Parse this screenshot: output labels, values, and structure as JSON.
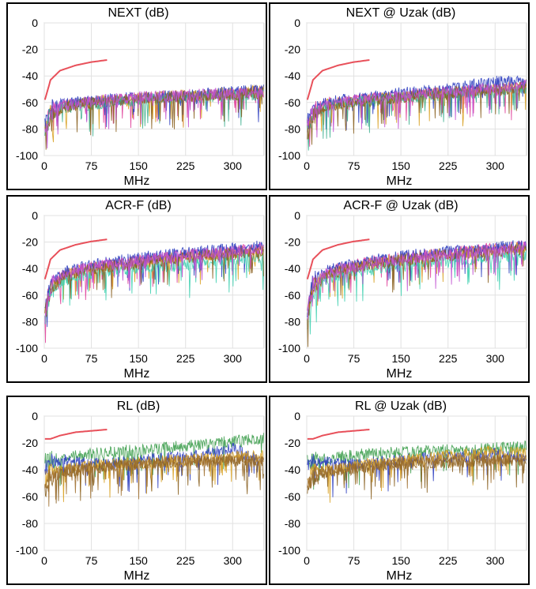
{
  "chart_data": [
    {
      "type": "line",
      "title": "NEXT (dB)",
      "xlabel": "MHz",
      "ylabel": "",
      "xlim": [
        0,
        350
      ],
      "ylim": [
        -100,
        0
      ],
      "x_ticks": [
        0,
        75,
        150,
        225,
        300
      ],
      "y_ticks": [
        0,
        -20,
        -40,
        -60,
        -80,
        -100
      ],
      "grid": true,
      "limit_line": {
        "x": [
          1,
          10,
          25,
          50,
          75,
          100
        ],
        "y": [
          -58,
          -43,
          -36,
          -32,
          -29.5,
          -28
        ]
      },
      "series": [
        {
          "color": "#e0409a",
          "x": [
            1,
            10,
            30,
            60,
            100,
            150,
            200,
            250,
            300,
            350
          ],
          "y": [
            -78,
            -66,
            -62,
            -60,
            -59,
            -57,
            -56,
            -55,
            -54,
            -52
          ]
        },
        {
          "color": "#d8a020",
          "x": [
            1,
            10,
            30,
            60,
            100,
            150,
            200,
            250,
            300,
            350
          ],
          "y": [
            -80,
            -68,
            -63,
            -61,
            -58,
            -57,
            -55,
            -54,
            -53,
            -51
          ]
        },
        {
          "color": "#3040c0",
          "x": [
            1,
            10,
            30,
            60,
            100,
            150,
            200,
            250,
            300,
            350
          ],
          "y": [
            -76,
            -65,
            -61,
            -59,
            -58,
            -56,
            -55,
            -54,
            -52,
            -50
          ]
        },
        {
          "color": "#40b090",
          "x": [
            1,
            10,
            30,
            60,
            100,
            150,
            200,
            250,
            300,
            350
          ],
          "y": [
            -82,
            -69,
            -64,
            -62,
            -60,
            -58,
            -57,
            -56,
            -55,
            -54
          ]
        },
        {
          "color": "#8a6020",
          "x": [
            1,
            10,
            30,
            60,
            100,
            150,
            200,
            250,
            300,
            350
          ],
          "y": [
            -84,
            -70,
            -64,
            -61,
            -59,
            -57,
            -56,
            -55,
            -54,
            -53
          ]
        },
        {
          "color": "#c050d0",
          "x": [
            1,
            10,
            30,
            60,
            100,
            150,
            200,
            250,
            300,
            350
          ],
          "y": [
            -79,
            -67,
            -62,
            -60,
            -58,
            -56,
            -55,
            -54,
            -53,
            -52
          ]
        }
      ]
    },
    {
      "type": "line",
      "title": "NEXT @ Uzak (dB)",
      "xlabel": "MHz",
      "ylabel": "",
      "xlim": [
        0,
        350
      ],
      "ylim": [
        -100,
        0
      ],
      "x_ticks": [
        0,
        75,
        150,
        225,
        300
      ],
      "y_ticks": [
        0,
        -20,
        -40,
        -60,
        -80,
        -100
      ],
      "grid": true,
      "limit_line": {
        "x": [
          1,
          10,
          25,
          50,
          75,
          100
        ],
        "y": [
          -58,
          -43,
          -36,
          -32,
          -29.5,
          -28
        ]
      },
      "series": [
        {
          "color": "#e0409a",
          "x": [
            1,
            10,
            30,
            60,
            100,
            150,
            200,
            250,
            300,
            350
          ],
          "y": [
            -78,
            -66,
            -61,
            -59,
            -57,
            -55,
            -53,
            -51,
            -50,
            -48
          ]
        },
        {
          "color": "#d8a020",
          "x": [
            1,
            10,
            30,
            60,
            100,
            150,
            200,
            250,
            300,
            350
          ],
          "y": [
            -80,
            -68,
            -62,
            -60,
            -58,
            -55,
            -53,
            -52,
            -50,
            -47
          ]
        },
        {
          "color": "#3040c0",
          "x": [
            1,
            10,
            30,
            60,
            100,
            150,
            200,
            250,
            300,
            350
          ],
          "y": [
            -76,
            -65,
            -60,
            -58,
            -56,
            -53,
            -51,
            -48,
            -44,
            -45
          ]
        },
        {
          "color": "#40b090",
          "x": [
            1,
            10,
            30,
            60,
            100,
            150,
            200,
            250,
            300,
            350
          ],
          "y": [
            -82,
            -69,
            -63,
            -61,
            -59,
            -57,
            -55,
            -53,
            -52,
            -50
          ]
        },
        {
          "color": "#8a6020",
          "x": [
            1,
            10,
            30,
            60,
            100,
            150,
            200,
            250,
            300,
            350
          ],
          "y": [
            -84,
            -70,
            -64,
            -61,
            -59,
            -56,
            -54,
            -52,
            -51,
            -49
          ]
        },
        {
          "color": "#c050d0",
          "x": [
            1,
            10,
            30,
            60,
            100,
            150,
            200,
            250,
            300,
            350
          ],
          "y": [
            -79,
            -67,
            -62,
            -59,
            -57,
            -55,
            -53,
            -51,
            -49,
            -47
          ]
        }
      ]
    },
    {
      "type": "line",
      "title": "ACR-F (dB)",
      "xlabel": "MHz",
      "ylabel": "",
      "xlim": [
        0,
        350
      ],
      "ylim": [
        -100,
        0
      ],
      "x_ticks": [
        0,
        75,
        150,
        225,
        300
      ],
      "y_ticks": [
        0,
        -20,
        -40,
        -60,
        -80,
        -100
      ],
      "grid": true,
      "limit_line": {
        "x": [
          1,
          10,
          25,
          50,
          75,
          100
        ],
        "y": [
          -48,
          -33,
          -26,
          -22,
          -19.5,
          -18
        ]
      },
      "series": [
        {
          "color": "#e0409a",
          "x": [
            1,
            10,
            30,
            60,
            100,
            150,
            200,
            250,
            300,
            350
          ],
          "y": [
            -72,
            -52,
            -44,
            -40,
            -37,
            -34,
            -31,
            -29,
            -27,
            -25
          ]
        },
        {
          "color": "#d8a020",
          "x": [
            1,
            10,
            30,
            60,
            100,
            150,
            200,
            250,
            300,
            350
          ],
          "y": [
            -74,
            -54,
            -46,
            -41,
            -38,
            -35,
            -32,
            -30,
            -28,
            -26
          ]
        },
        {
          "color": "#3040c0",
          "x": [
            1,
            10,
            30,
            60,
            100,
            150,
            200,
            250,
            300,
            350
          ],
          "y": [
            -70,
            -51,
            -43,
            -39,
            -35,
            -32,
            -29,
            -27,
            -25,
            -23
          ]
        },
        {
          "color": "#40d0b0",
          "x": [
            1,
            10,
            30,
            60,
            100,
            150,
            200,
            250,
            300,
            350
          ],
          "y": [
            -80,
            -58,
            -49,
            -45,
            -42,
            -40,
            -38,
            -36,
            -34,
            -32
          ]
        },
        {
          "color": "#8a6020",
          "x": [
            1,
            10,
            30,
            60,
            100,
            150,
            200,
            250,
            300,
            350
          ],
          "y": [
            -76,
            -55,
            -47,
            -42,
            -39,
            -36,
            -33,
            -31,
            -29,
            -27
          ]
        },
        {
          "color": "#c050d0",
          "x": [
            1,
            10,
            30,
            60,
            100,
            150,
            200,
            250,
            300,
            350
          ],
          "y": [
            -73,
            -53,
            -45,
            -40,
            -37,
            -34,
            -31,
            -29,
            -27,
            -25
          ]
        }
      ]
    },
    {
      "type": "line",
      "title": "ACR-F @ Uzak (dB)",
      "xlabel": "MHz",
      "ylabel": "",
      "xlim": [
        0,
        350
      ],
      "ylim": [
        -100,
        0
      ],
      "x_ticks": [
        0,
        75,
        150,
        225,
        300
      ],
      "y_ticks": [
        0,
        -20,
        -40,
        -60,
        -80,
        -100
      ],
      "grid": true,
      "limit_line": {
        "x": [
          1,
          10,
          25,
          50,
          75,
          100
        ],
        "y": [
          -48,
          -33,
          -26,
          -22,
          -19.5,
          -18
        ]
      },
      "series": [
        {
          "color": "#e0409a",
          "x": [
            1,
            10,
            30,
            60,
            100,
            150,
            200,
            250,
            300,
            350
          ],
          "y": [
            -72,
            -52,
            -43,
            -39,
            -35,
            -32,
            -29,
            -27,
            -25,
            -23
          ]
        },
        {
          "color": "#d8a020",
          "x": [
            1,
            10,
            30,
            60,
            100,
            150,
            200,
            250,
            300,
            350
          ],
          "y": [
            -74,
            -53,
            -45,
            -40,
            -36,
            -33,
            -30,
            -28,
            -26,
            -24
          ]
        },
        {
          "color": "#3040c0",
          "x": [
            1,
            10,
            30,
            60,
            100,
            150,
            200,
            250,
            300,
            350
          ],
          "y": [
            -70,
            -50,
            -42,
            -38,
            -34,
            -31,
            -28,
            -26,
            -24,
            -22
          ]
        },
        {
          "color": "#40d0b0",
          "x": [
            1,
            10,
            30,
            60,
            100,
            150,
            200,
            250,
            300,
            350
          ],
          "y": [
            -80,
            -57,
            -48,
            -44,
            -41,
            -38,
            -36,
            -34,
            -32,
            -30
          ]
        },
        {
          "color": "#8a6020",
          "x": [
            1,
            10,
            30,
            60,
            100,
            150,
            200,
            250,
            300,
            350
          ],
          "y": [
            -76,
            -55,
            -46,
            -41,
            -37,
            -34,
            -31,
            -29,
            -27,
            -25
          ]
        },
        {
          "color": "#c050d0",
          "x": [
            1,
            10,
            30,
            60,
            100,
            150,
            200,
            250,
            300,
            350
          ],
          "y": [
            -73,
            -52,
            -44,
            -40,
            -36,
            -33,
            -30,
            -28,
            -26,
            -24
          ]
        }
      ]
    },
    {
      "type": "line",
      "title": "RL (dB)",
      "xlabel": "MHz",
      "ylabel": "",
      "xlim": [
        0,
        350
      ],
      "ylim": [
        -100,
        0
      ],
      "x_ticks": [
        0,
        75,
        150,
        225,
        300
      ],
      "y_ticks": [
        0,
        -20,
        -40,
        -60,
        -80,
        -100
      ],
      "grid": true,
      "limit_line": {
        "x": [
          1,
          10,
          25,
          50,
          75,
          100
        ],
        "y": [
          -17,
          -17,
          -14.5,
          -12,
          -11,
          -10
        ]
      },
      "series": [
        {
          "color": "#40a050",
          "x": [
            1,
            10,
            30,
            60,
            100,
            150,
            200,
            250,
            300,
            350
          ],
          "y": [
            -34,
            -32,
            -31,
            -29,
            -27,
            -25,
            -23,
            -21,
            -19,
            -17
          ]
        },
        {
          "color": "#3040c0",
          "x": [
            1,
            10,
            30,
            60,
            100,
            150,
            200,
            250,
            300,
            350
          ],
          "y": [
            -38,
            -34,
            -33,
            -35,
            -36,
            -33,
            -31,
            -29,
            -24,
            -34
          ]
        },
        {
          "color": "#d8a020",
          "x": [
            1,
            10,
            30,
            60,
            100,
            150,
            200,
            250,
            300,
            350
          ],
          "y": [
            -48,
            -42,
            -40,
            -38,
            -36,
            -35,
            -33,
            -32,
            -30,
            -30
          ]
        },
        {
          "color": "#8a6020",
          "x": [
            1,
            10,
            30,
            60,
            100,
            150,
            200,
            250,
            300,
            350
          ],
          "y": [
            -55,
            -46,
            -42,
            -40,
            -38,
            -36,
            -35,
            -34,
            -33,
            -34
          ]
        },
        {
          "color": "#a07030",
          "x": [
            1,
            10,
            30,
            60,
            100,
            150,
            200,
            250,
            300,
            350
          ],
          "y": [
            -50,
            -44,
            -41,
            -39,
            -37,
            -36,
            -34,
            -33,
            -32,
            -33
          ]
        }
      ]
    },
    {
      "type": "line",
      "title": "RL @ Uzak (dB)",
      "xlabel": "MHz",
      "ylabel": "",
      "xlim": [
        0,
        350
      ],
      "ylim": [
        -100,
        0
      ],
      "x_ticks": [
        0,
        75,
        150,
        225,
        300
      ],
      "y_ticks": [
        0,
        -20,
        -40,
        -60,
        -80,
        -100
      ],
      "grid": true,
      "limit_line": {
        "x": [
          1,
          10,
          25,
          50,
          75,
          100
        ],
        "y": [
          -17,
          -17,
          -14.5,
          -12,
          -11,
          -10
        ]
      },
      "series": [
        {
          "color": "#40a050",
          "x": [
            1,
            10,
            30,
            60,
            100,
            150,
            200,
            250,
            300,
            350
          ],
          "y": [
            -34,
            -33,
            -32,
            -30,
            -28,
            -27,
            -26,
            -25,
            -24,
            -23
          ]
        },
        {
          "color": "#3040c0",
          "x": [
            1,
            10,
            30,
            60,
            100,
            150,
            200,
            250,
            300,
            350
          ],
          "y": [
            -38,
            -35,
            -34,
            -36,
            -35,
            -33,
            -31,
            -30,
            -28,
            -32
          ]
        },
        {
          "color": "#d8a020",
          "x": [
            1,
            10,
            30,
            60,
            100,
            150,
            200,
            250,
            300,
            350
          ],
          "y": [
            -48,
            -42,
            -40,
            -38,
            -35,
            -33,
            -31,
            -28,
            -26,
            -28
          ]
        },
        {
          "color": "#8a6020",
          "x": [
            1,
            10,
            30,
            60,
            100,
            150,
            200,
            250,
            300,
            350
          ],
          "y": [
            -56,
            -46,
            -42,
            -40,
            -38,
            -36,
            -35,
            -34,
            -33,
            -34
          ]
        },
        {
          "color": "#a07030",
          "x": [
            1,
            10,
            30,
            60,
            100,
            150,
            200,
            250,
            300,
            350
          ],
          "y": [
            -50,
            -44,
            -41,
            -39,
            -37,
            -35,
            -34,
            -33,
            -32,
            -33
          ]
        }
      ]
    }
  ]
}
